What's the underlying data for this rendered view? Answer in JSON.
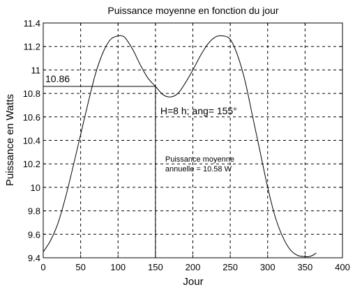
{
  "chart_data": {
    "type": "line",
    "title": "Puissance moyenne en fonction du jour",
    "xlabel": "Jour",
    "ylabel": "Puissance en Watts",
    "xlim": [
      0,
      400
    ],
    "ylim": [
      9.4,
      11.4
    ],
    "xticks": [
      0,
      50,
      100,
      150,
      200,
      250,
      300,
      350,
      400
    ],
    "xtick_labels": [
      "0",
      "50",
      "100",
      "150",
      "200",
      "250",
      "300",
      "350",
      "400"
    ],
    "yticks": [
      9.4,
      9.6,
      9.8,
      10,
      10.2,
      10.4,
      10.6,
      10.8,
      11,
      11.2,
      11.4
    ],
    "ytick_labels": [
      "9.4",
      "9.6",
      "9.8",
      "10",
      "10.2",
      "10.4",
      "10.6",
      "10.8",
      "11",
      "11.2",
      "11.4"
    ],
    "grid": true,
    "series": [
      {
        "name": "",
        "color": "#000000",
        "x": [
          0,
          10,
          20,
          30,
          40,
          50,
          60,
          70,
          80,
          90,
          100,
          105,
          110,
          120,
          130,
          140,
          150,
          160,
          170,
          180,
          190,
          200,
          210,
          220,
          230,
          240,
          250,
          260,
          270,
          280,
          290,
          300,
          310,
          320,
          330,
          340,
          350,
          355,
          360,
          365
        ],
        "y": [
          9.45,
          9.55,
          9.7,
          9.92,
          10.18,
          10.45,
          10.72,
          10.97,
          11.15,
          11.26,
          11.29,
          11.29,
          11.27,
          11.17,
          11.04,
          10.93,
          10.86,
          10.79,
          10.77,
          10.8,
          10.89,
          11.0,
          11.12,
          11.22,
          11.28,
          11.29,
          11.26,
          11.12,
          10.9,
          10.6,
          10.3,
          10.0,
          9.75,
          9.58,
          9.47,
          9.42,
          9.41,
          9.41,
          9.42,
          9.44
        ]
      }
    ],
    "annotations": {
      "marker_x": 150,
      "marker_y": 10.86,
      "marker_label": "10.86",
      "condition": "H=8  h; ang= 155°",
      "mean_line1": "Puissance moyenne",
      "mean_line2": "annuelle = 10.58  W"
    }
  }
}
